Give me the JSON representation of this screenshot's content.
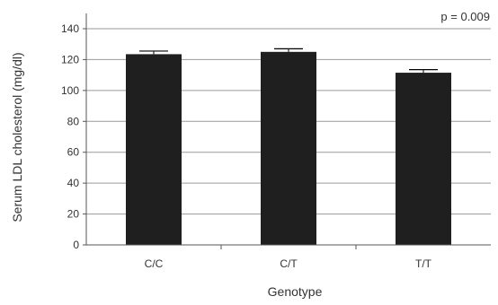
{
  "chart_data": {
    "type": "bar",
    "categories": [
      "C/C",
      "C/T",
      "T/T"
    ],
    "values": [
      123.5,
      125,
      111.5
    ],
    "error": [
      2,
      2,
      2
    ],
    "xlabel": "Genotype",
    "ylabel": "Serum LDL cholesterol (mg/dl)",
    "ylim": [
      0,
      140
    ],
    "yticks": [
      0,
      20,
      40,
      60,
      80,
      100,
      120,
      140
    ],
    "grid": true,
    "annotation": "p = 0.009",
    "bar_color": "#1f1f1f",
    "grid_color": "#9a9a9a"
  }
}
